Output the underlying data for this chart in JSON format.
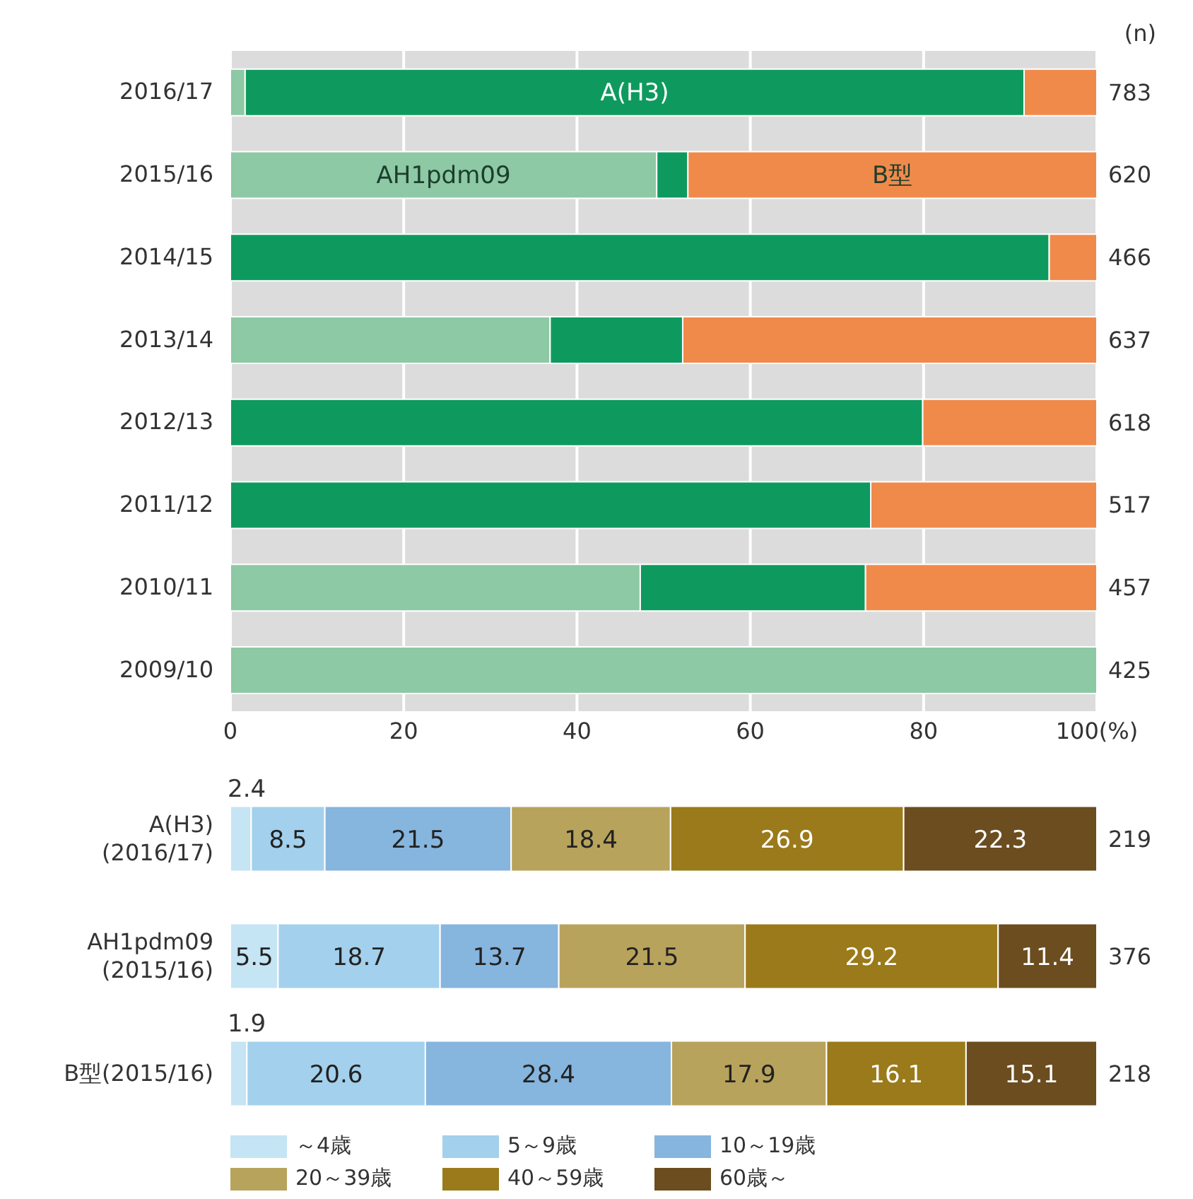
{
  "chart_data": [
    {
      "type": "bar",
      "orientation": "horizontal",
      "stacked": true,
      "categories": [
        "2016/17",
        "2015/16",
        "2014/15",
        "2013/14",
        "2012/13",
        "2011/12",
        "2010/11",
        "2009/10"
      ],
      "series": [
        {
          "name": "AH1pdm09",
          "color": "#8cc9a4",
          "values": [
            1.7,
            49.2,
            0,
            36.9,
            0,
            0,
            47.3,
            100
          ]
        },
        {
          "name": "A(H3)",
          "color": "#0e9a5e",
          "values": [
            89.9,
            3.6,
            94.5,
            15.3,
            79.9,
            73.9,
            26.0,
            0
          ]
        },
        {
          "name": "B型",
          "color": "#f08a4b",
          "values": [
            8.4,
            47.2,
            5.5,
            47.8,
            20.1,
            26.1,
            26.7,
            0
          ]
        }
      ],
      "xlim": [
        0,
        100
      ],
      "xticks": [
        0,
        20,
        40,
        60,
        80,
        {
          "value": 100,
          "label": "100(%)"
        }
      ],
      "grid": "x",
      "annotations": [
        "(n)",
        "783",
        "620",
        "466",
        "637",
        "618",
        "517",
        "457",
        "425"
      ]
    },
    {
      "type": "bar",
      "orientation": "horizontal",
      "stacked": true,
      "categories": [
        "A(H3) (2016/17)",
        "AH1pdm09 (2015/16)",
        "B型(2015/16)"
      ],
      "series": [
        {
          "name": "～4歳",
          "color": "#c5e4f4",
          "values": [
            2.4,
            5.5,
            1.9
          ]
        },
        {
          "name": "5～9歳",
          "color": "#a3d0ec",
          "values": [
            8.5,
            18.7,
            20.6
          ]
        },
        {
          "name": "10～19歳",
          "color": "#86b5de",
          "values": [
            21.5,
            13.7,
            28.4
          ]
        },
        {
          "name": "20～39歳",
          "color": "#b8a35c",
          "values": [
            18.4,
            21.5,
            17.9
          ]
        },
        {
          "name": "40～59歳",
          "color": "#9a7a1a",
          "values": [
            26.9,
            29.2,
            16.1
          ]
        },
        {
          "name": "60歳～",
          "color": "#6b4d1f",
          "values": [
            22.3,
            11.4,
            15.1
          ]
        }
      ],
      "data_labels": true,
      "tick_labels": "y",
      "legend": "bottom",
      "annotations": [
        "219",
        "376",
        "218"
      ]
    }
  ]
}
